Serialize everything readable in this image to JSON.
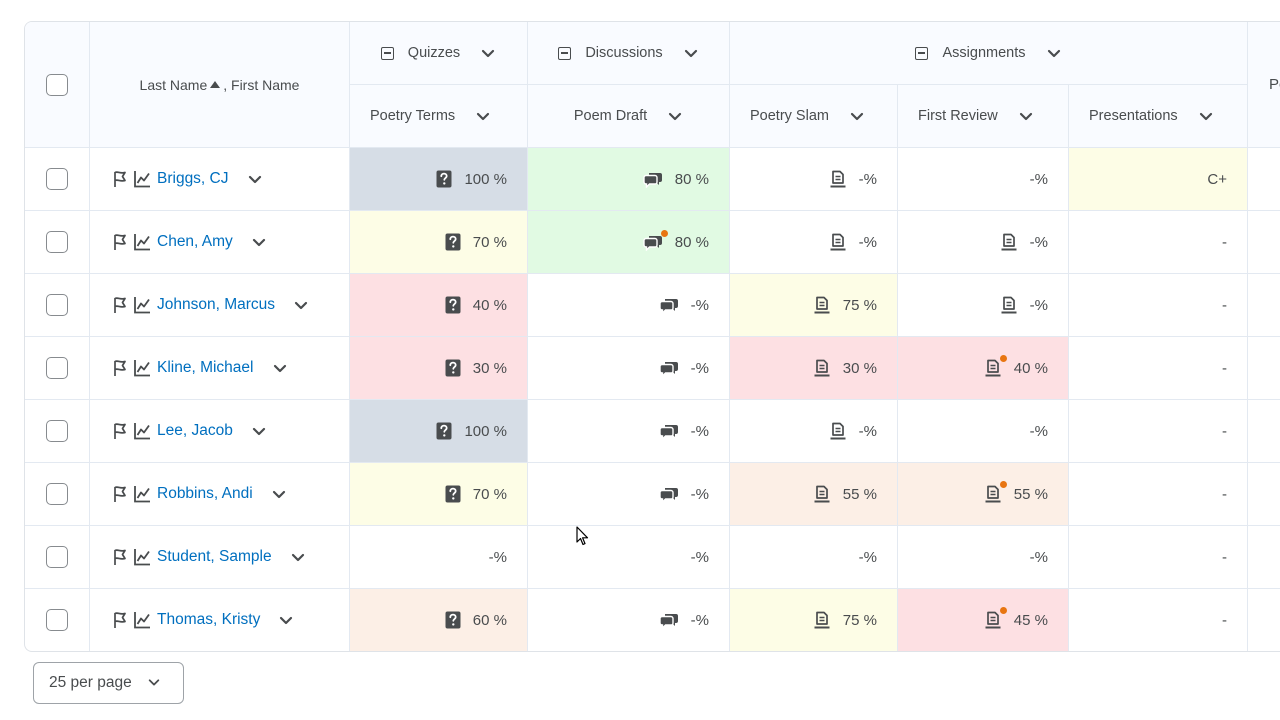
{
  "table": {
    "header": {
      "name_label": "Last Name",
      "name_label_2": ", First Name",
      "groups": [
        {
          "label": "Quizzes"
        },
        {
          "label": "Discussions"
        },
        {
          "label": "Assignments"
        },
        {
          "label": "Po"
        }
      ],
      "items": [
        {
          "label": "Poetry Terms"
        },
        {
          "label": "Poem Draft"
        },
        {
          "label": "Poetry Slam"
        },
        {
          "label": "First Review"
        },
        {
          "label": "Presentations"
        }
      ]
    },
    "rows": [
      {
        "name": "Briggs, CJ",
        "cells": [
          {
            "value": "100 %",
            "icon": "quiz-icon",
            "bg": "#d6dde6"
          },
          {
            "value": "80 %",
            "icon": "discussion-icon",
            "bg": "#e1fae3"
          },
          {
            "value": "-%",
            "icon": "assignment-icon",
            "bg": "#ffffff"
          },
          {
            "value": "-%",
            "icon": "",
            "bg": "#ffffff"
          },
          {
            "value": "C+",
            "icon": "",
            "bg": "#fdfde6"
          }
        ]
      },
      {
        "name": "Chen, Amy",
        "cells": [
          {
            "value": "70 %",
            "icon": "quiz-icon",
            "bg": "#fdfde6"
          },
          {
            "value": "80 %",
            "icon": "discussion-icon",
            "dot": true,
            "bg": "#e1fae3"
          },
          {
            "value": "-%",
            "icon": "assignment-icon",
            "bg": "#ffffff"
          },
          {
            "value": "-%",
            "icon": "assignment-icon",
            "bg": "#ffffff"
          },
          {
            "value": "-",
            "icon": "",
            "bg": "#ffffff"
          }
        ]
      },
      {
        "name": "Johnson, Marcus",
        "cells": [
          {
            "value": "40 %",
            "icon": "quiz-icon",
            "bg": "#fde0e3"
          },
          {
            "value": "-%",
            "icon": "discussion-icon",
            "bg": "#ffffff"
          },
          {
            "value": "75 %",
            "icon": "assignment-icon",
            "bg": "#fdfde6"
          },
          {
            "value": "-%",
            "icon": "assignment-icon",
            "bg": "#ffffff"
          },
          {
            "value": "-",
            "icon": "",
            "bg": "#ffffff"
          }
        ]
      },
      {
        "name": "Kline, Michael",
        "cells": [
          {
            "value": "30 %",
            "icon": "quiz-icon",
            "bg": "#fde0e3"
          },
          {
            "value": "-%",
            "icon": "discussion-icon",
            "bg": "#ffffff"
          },
          {
            "value": "30 %",
            "icon": "assignment-icon",
            "bg": "#fde0e3"
          },
          {
            "value": "40 %",
            "icon": "assignment-icon",
            "dot": true,
            "bg": "#fde0e3"
          },
          {
            "value": "-",
            "icon": "",
            "bg": "#ffffff"
          }
        ]
      },
      {
        "name": "Lee, Jacob",
        "cells": [
          {
            "value": "100 %",
            "icon": "quiz-icon",
            "bg": "#d6dde6"
          },
          {
            "value": "-%",
            "icon": "discussion-icon",
            "bg": "#ffffff"
          },
          {
            "value": "-%",
            "icon": "assignment-icon",
            "bg": "#ffffff"
          },
          {
            "value": "-%",
            "icon": "",
            "bg": "#ffffff"
          },
          {
            "value": "-",
            "icon": "",
            "bg": "#ffffff"
          }
        ]
      },
      {
        "name": "Robbins, Andi",
        "cells": [
          {
            "value": "70 %",
            "icon": "quiz-icon",
            "bg": "#fdfde6"
          },
          {
            "value": "-%",
            "icon": "discussion-icon",
            "bg": "#ffffff"
          },
          {
            "value": "55 %",
            "icon": "assignment-icon",
            "bg": "#fcefe6"
          },
          {
            "value": "55 %",
            "icon": "assignment-icon",
            "dot": true,
            "bg": "#fcefe6"
          },
          {
            "value": "-",
            "icon": "",
            "bg": "#ffffff"
          }
        ]
      },
      {
        "name": "Student, Sample",
        "cells": [
          {
            "value": "-%",
            "icon": "",
            "bg": "#ffffff"
          },
          {
            "value": "-%",
            "icon": "",
            "bg": "#ffffff"
          },
          {
            "value": "-%",
            "icon": "",
            "bg": "#ffffff"
          },
          {
            "value": "-%",
            "icon": "",
            "bg": "#ffffff"
          },
          {
            "value": "-",
            "icon": "",
            "bg": "#ffffff"
          }
        ]
      },
      {
        "name": "Thomas, Kristy",
        "cells": [
          {
            "value": "60 %",
            "icon": "quiz-icon",
            "bg": "#fcefe6"
          },
          {
            "value": "-%",
            "icon": "discussion-icon",
            "bg": "#ffffff"
          },
          {
            "value": "75 %",
            "icon": "assignment-icon",
            "bg": "#fdfde6"
          },
          {
            "value": "45 %",
            "icon": "assignment-icon",
            "dot": true,
            "bg": "#fde0e3"
          },
          {
            "value": "-",
            "icon": "",
            "bg": "#ffffff"
          }
        ]
      }
    ]
  },
  "pagination": {
    "per_page_label": "25 per page"
  },
  "colors": {
    "link": "#006fbf",
    "header_bg": "#f9fbff",
    "dot": "#e87511"
  }
}
